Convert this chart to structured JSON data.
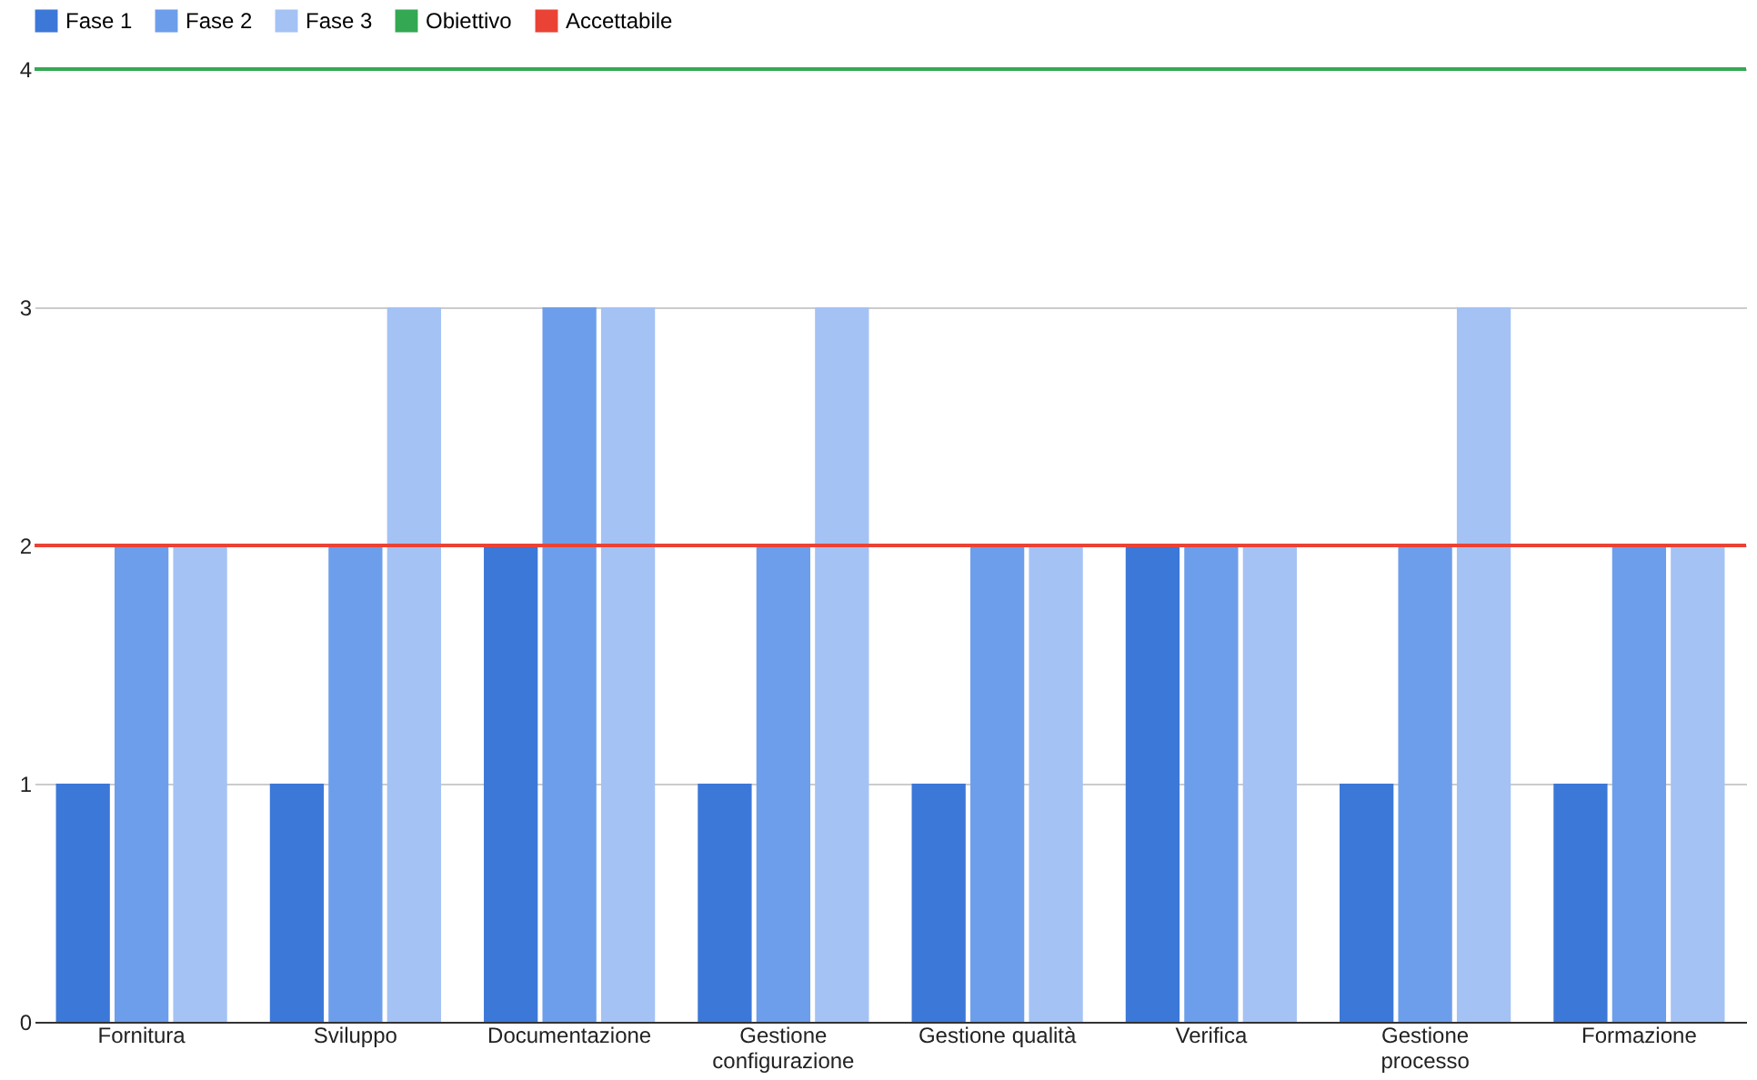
{
  "chart_data": {
    "type": "bar",
    "categories": [
      "Fornitura",
      "Sviluppo",
      "Documentazione",
      "Gestione configurazione",
      "Gestione qualità",
      "Verifica",
      "Gestione processo",
      "Formazione"
    ],
    "series": [
      {
        "name": "Fase 1",
        "color": "#3c78d8",
        "values": [
          1,
          1,
          2,
          1,
          1,
          2,
          1,
          1
        ]
      },
      {
        "name": "Fase 2",
        "color": "#6d9eeb",
        "values": [
          2,
          2,
          3,
          2,
          2,
          2,
          2,
          2
        ]
      },
      {
        "name": "Fase 3",
        "color": "#a4c2f4",
        "values": [
          2,
          3,
          3,
          3,
          2,
          2,
          3,
          2
        ]
      }
    ],
    "ref_lines": [
      {
        "axis": "y",
        "value": 4,
        "label": "Obiettivo",
        "color": "#34a853"
      },
      {
        "axis": "y",
        "value": 2,
        "label": "Accettabile",
        "color": "#ea4335"
      }
    ],
    "ylim": [
      0,
      4
    ],
    "yticks": [
      0,
      1,
      2,
      3,
      4
    ],
    "grid": "y",
    "legend": "top"
  }
}
